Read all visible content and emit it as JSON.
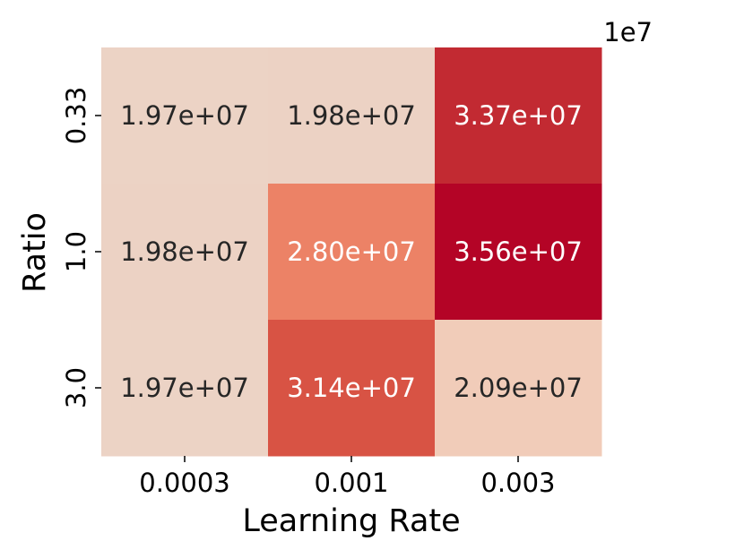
{
  "chart_data": {
    "type": "heatmap",
    "title": "",
    "xlabel": "Learning Rate",
    "ylabel": "Ratio",
    "x_categories": [
      "0.0003",
      "0.001",
      "0.003"
    ],
    "y_categories": [
      "0.33",
      "1.0",
      "3.0"
    ],
    "values": [
      [
        19700000,
        19800000,
        33700000
      ],
      [
        19800000,
        28000000,
        35600000
      ],
      [
        19700000,
        31400000,
        20900000
      ]
    ],
    "cell_labels": [
      [
        "1.97e+07",
        "1.98e+07",
        "3.37e+07"
      ],
      [
        "1.98e+07",
        "2.80e+07",
        "3.56e+07"
      ],
      [
        "1.97e+07",
        "3.14e+07",
        "2.09e+07"
      ]
    ],
    "scale_exponent_label": "1e7",
    "colormap": "coolwarm-upper-half",
    "color_low": "#ecd3c6",
    "color_high": "#b40426",
    "colorbar": false,
    "grid": false,
    "legend": "none"
  }
}
